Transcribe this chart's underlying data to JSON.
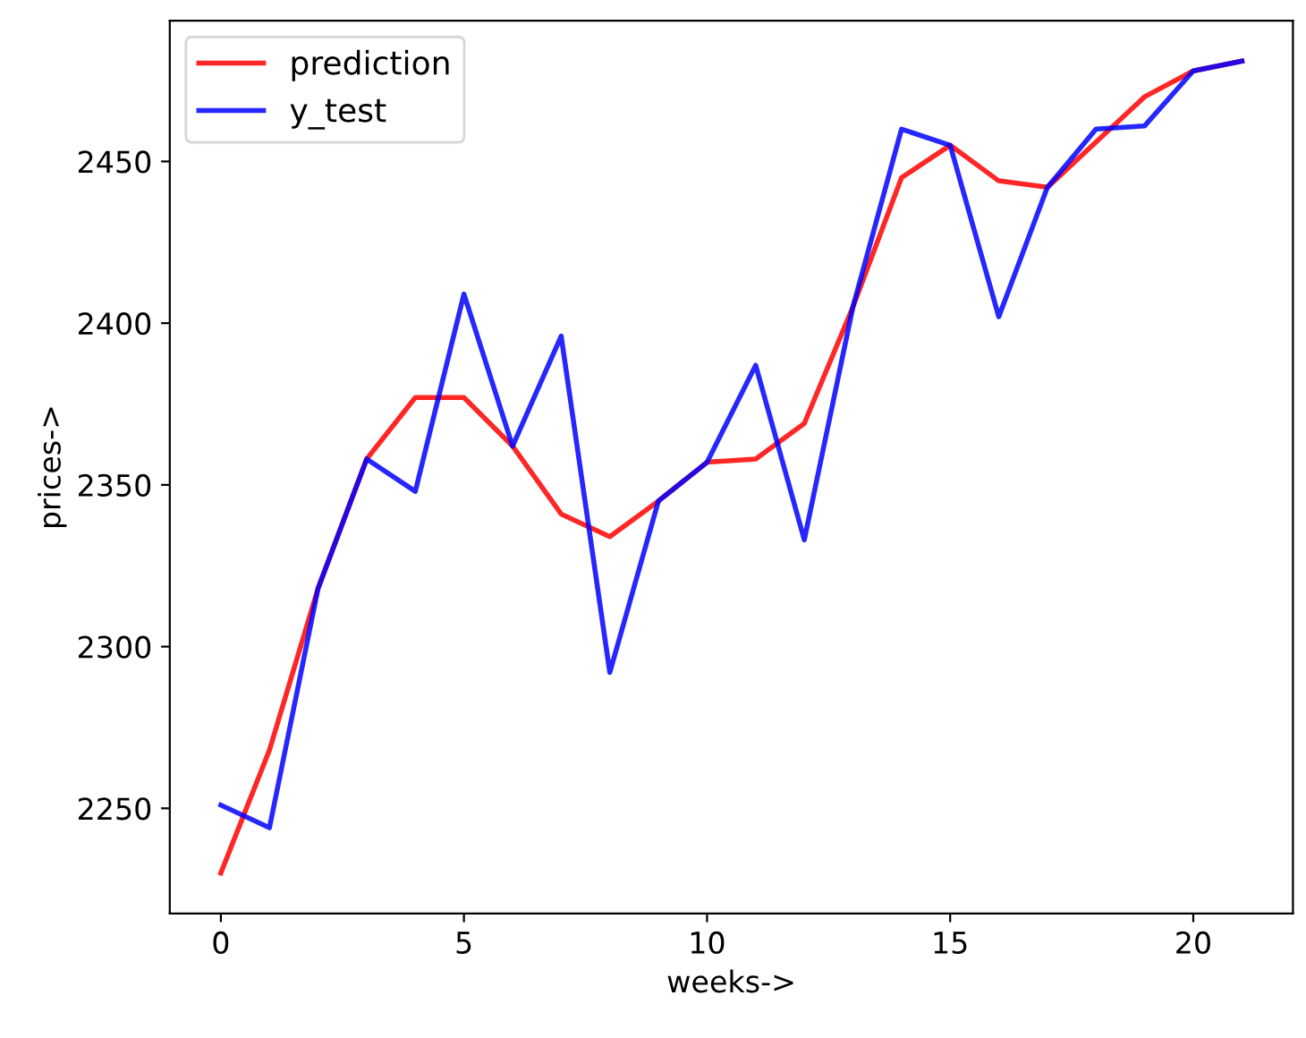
{
  "chart_data": {
    "type": "line",
    "xlabel": "weeks->",
    "ylabel": "prices->",
    "x": [
      0,
      1,
      2,
      3,
      4,
      5,
      6,
      7,
      8,
      9,
      10,
      11,
      12,
      13,
      14,
      15,
      16,
      17,
      18,
      19,
      20,
      21
    ],
    "series": [
      {
        "name": "prediction",
        "color": "#ff0000",
        "values": [
          2230,
          2268,
          2318,
          2358,
          2377,
          2377,
          2362,
          2341,
          2334,
          2345,
          2357,
          2358,
          2369,
          2405,
          2445,
          2455,
          2444,
          2442,
          2456,
          2470,
          2478,
          2481
        ]
      },
      {
        "name": "y_test",
        "color": "#0000ff",
        "values": [
          2251,
          2244,
          2318,
          2358,
          2348,
          2409,
          2362,
          2396,
          2292,
          2345,
          2357,
          2387,
          2333,
          2405,
          2460,
          2455,
          2402,
          2442,
          2460,
          2461,
          2478,
          2481
        ]
      }
    ],
    "xlim": [
      -1.05,
      22.05
    ],
    "ylim": [
      2217.5,
      2493.5
    ],
    "xticks": [
      0,
      5,
      10,
      15,
      20
    ],
    "yticks": [
      2250,
      2300,
      2350,
      2400,
      2450
    ],
    "legend": "top left",
    "grid": false
  }
}
